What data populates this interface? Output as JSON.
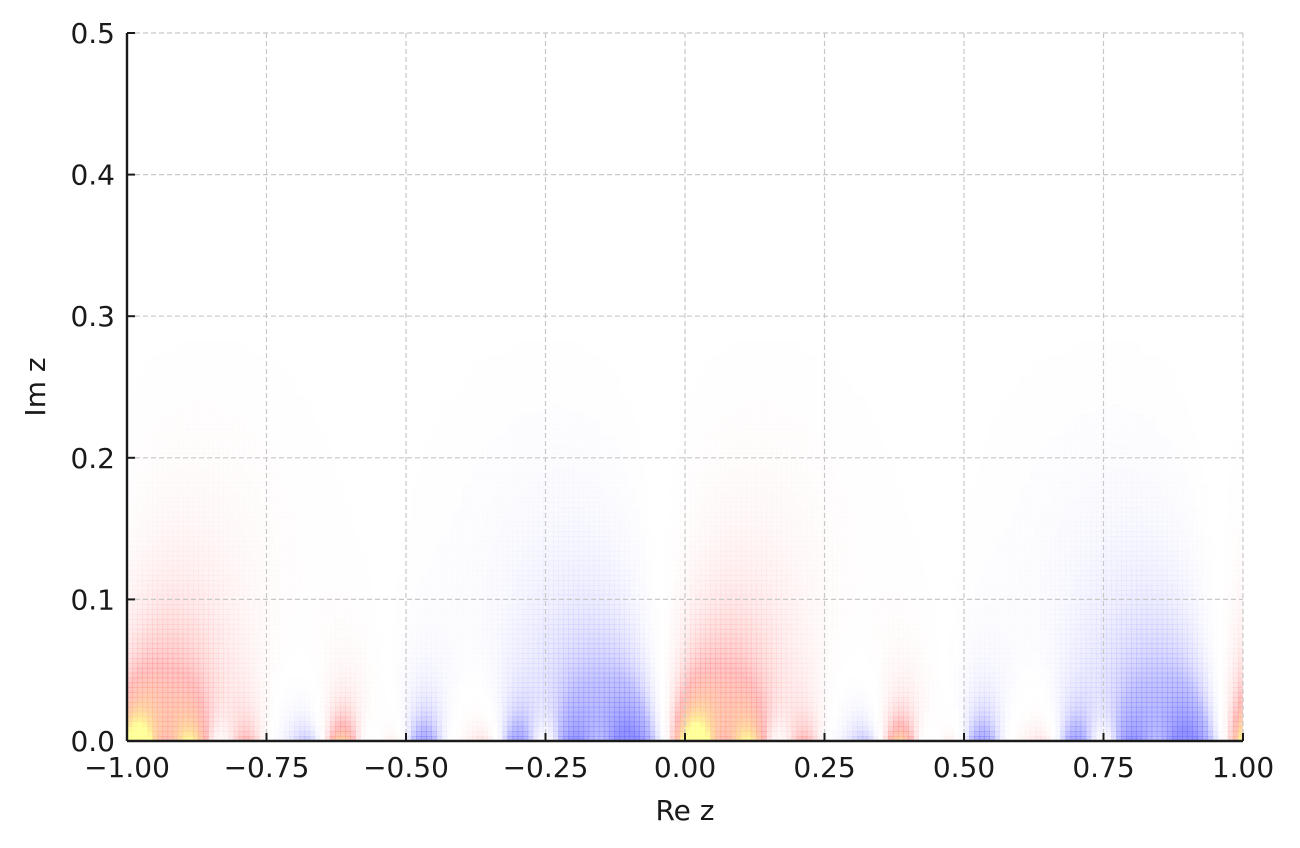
{
  "chart_data": {
    "type": "heatmap",
    "title": "",
    "xlabel": "Re z",
    "ylabel": "Im z",
    "xlim": [
      -1.0,
      1.0
    ],
    "ylim": [
      0.0,
      0.5
    ],
    "x_ticks": [
      "−1.00",
      "−0.75",
      "−0.50",
      "−0.25",
      "0.00",
      "0.25",
      "0.50",
      "0.75",
      "1.00"
    ],
    "x_tick_values": [
      -1.0,
      -0.75,
      -0.5,
      -0.25,
      0.0,
      0.25,
      0.5,
      0.75,
      1.0
    ],
    "y_ticks": [
      "0.0",
      "0.1",
      "0.2",
      "0.3",
      "0.4",
      "0.5"
    ],
    "y_tick_values": [
      0.0,
      0.1,
      0.2,
      0.3,
      0.4,
      0.5
    ],
    "grid": true,
    "period_in_re_z": 1.0,
    "field_fades_above_im_z": 0.31,
    "colormap": [
      "#6b6bff",
      "#ffffff",
      "#ff6b6b",
      "#ffff80"
    ],
    "colorbar": "none"
  }
}
